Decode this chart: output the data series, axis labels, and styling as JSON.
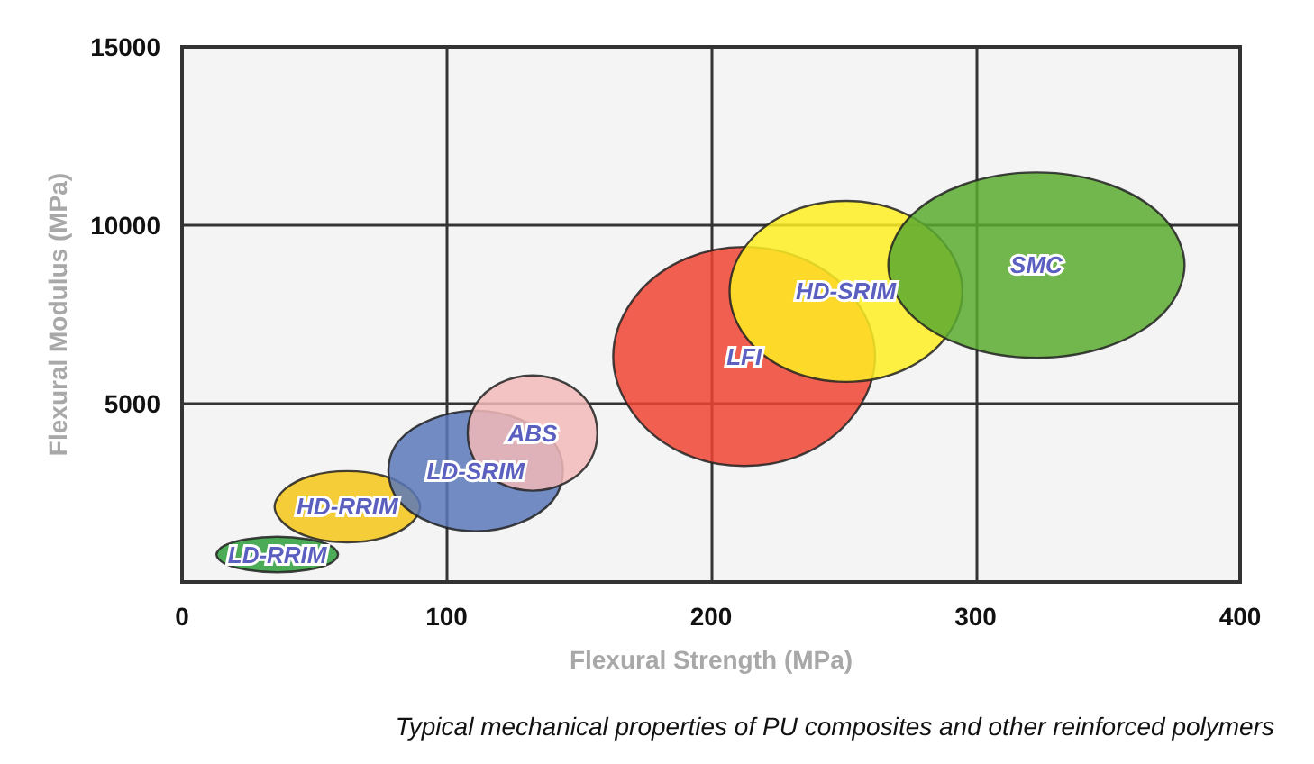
{
  "chart_data": {
    "type": "area",
    "xlabel": "Flexural Strength (MPa)",
    "ylabel": "Flexural Modulus (MPa)",
    "xlim": [
      0,
      400
    ],
    "xticks": [
      0,
      100,
      200,
      300,
      400
    ],
    "ylim": [
      0,
      15000
    ],
    "yticks": [
      {
        "value": 0,
        "label": null
      },
      5000,
      10000,
      15000
    ],
    "grid": true,
    "legend": false,
    "annotations": [
      "Typical mechanical properties of PU composites and other reinforced polymers"
    ],
    "series": [
      {
        "name": "LD-RRIM",
        "color": "#2e9e3a",
        "x": [
          59,
          56,
          47.5,
          36,
          24.5,
          16,
          13,
          16,
          24.5,
          36,
          47.5,
          56
        ],
        "values": [
          770,
          1020,
          1200,
          1270,
          1200,
          1020,
          770,
          520,
          340,
          270,
          340,
          520
        ]
      },
      {
        "name": "HD-RRIM",
        "color": "#f5c518",
        "x": [
          90,
          86,
          76,
          62.5,
          49,
          39,
          35,
          39,
          49,
          62.5,
          76,
          86
        ],
        "values": [
          2110,
          2610,
          2980,
          3110,
          2980,
          2610,
          2110,
          1610,
          1240,
          1110,
          1240,
          1610
        ]
      },
      {
        "name": "LD-SRIM",
        "color": "#5b78b8",
        "x": [
          144,
          140,
          127.5,
          111,
          94.5,
          82,
          78,
          82,
          94.5,
          111,
          127.5,
          140
        ],
        "values": [
          3110,
          3960,
          4570,
          4800,
          4570,
          3960,
          3110,
          2270,
          1650,
          1420,
          1650,
          2270
        ]
      },
      {
        "name": "ABS",
        "color": "#f2b8b8",
        "x": [
          157,
          154,
          145,
          132.5,
          120,
          111,
          108,
          111,
          120,
          132.5,
          145,
          154
        ],
        "values": [
          4180,
          4980,
          5570,
          5790,
          5570,
          4980,
          4180,
          3370,
          2780,
          2560,
          2780,
          3370
        ]
      },
      {
        "name": "LFI",
        "color": "#ee4433",
        "x": [
          262,
          255,
          237,
          212.5,
          188,
          170,
          163,
          170,
          188,
          212.5,
          237,
          255
        ],
        "values": [
          6320,
          7860,
          8980,
          9390,
          8980,
          7860,
          6320,
          4790,
          3660,
          3250,
          3660,
          4790
        ]
      },
      {
        "name": "HD-SRIM",
        "color": "#ffee22",
        "x": [
          295,
          289,
          273,
          251,
          229,
          213,
          207,
          213,
          229,
          251,
          273,
          289
        ],
        "values": [
          8150,
          9410,
          10340,
          10680,
          10340,
          9410,
          8150,
          6880,
          5950,
          5610,
          5950,
          6880
        ]
      },
      {
        "name": "SMC",
        "color": "#5aaa30",
        "x": [
          379,
          371.5,
          351,
          323,
          295,
          274.5,
          267,
          274.5,
          295,
          323,
          351,
          371.5
        ],
        "values": [
          8880,
          10180,
          11130,
          11480,
          11130,
          10180,
          8880,
          7580,
          6630,
          6280,
          6630,
          7580
        ]
      }
    ]
  }
}
